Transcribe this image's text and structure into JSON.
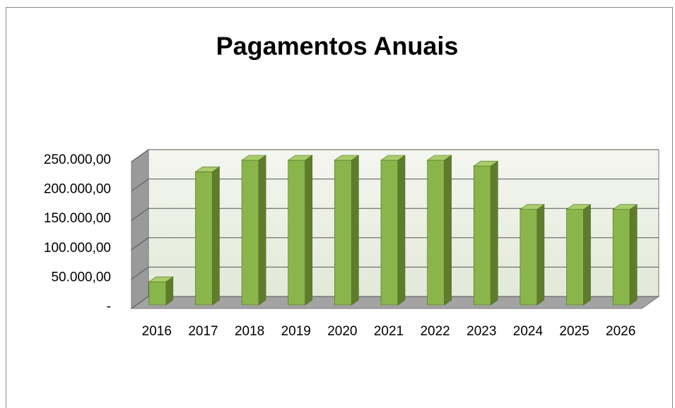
{
  "chart_data": {
    "type": "bar3d",
    "title": "Pagamentos Anuais",
    "categories": [
      "2016",
      "2017",
      "2018",
      "2019",
      "2020",
      "2021",
      "2022",
      "2023",
      "2024",
      "2025",
      "2026"
    ],
    "values": [
      40000,
      230000,
      250000,
      250000,
      250000,
      250000,
      250000,
      240000,
      165000,
      165000,
      165000
    ],
    "color": "#8ab54a",
    "ylim": [
      0,
      250000
    ],
    "yticks": [
      {
        "value": 0,
        "label": "-"
      },
      {
        "value": 50000,
        "label": "50.000,00"
      },
      {
        "value": 100000,
        "label": "100.000,00"
      },
      {
        "value": 150000,
        "label": "150.000,00"
      },
      {
        "value": 200000,
        "label": "200.000,00"
      },
      {
        "value": 250000,
        "label": "250.000,00"
      }
    ],
    "grid": true
  }
}
